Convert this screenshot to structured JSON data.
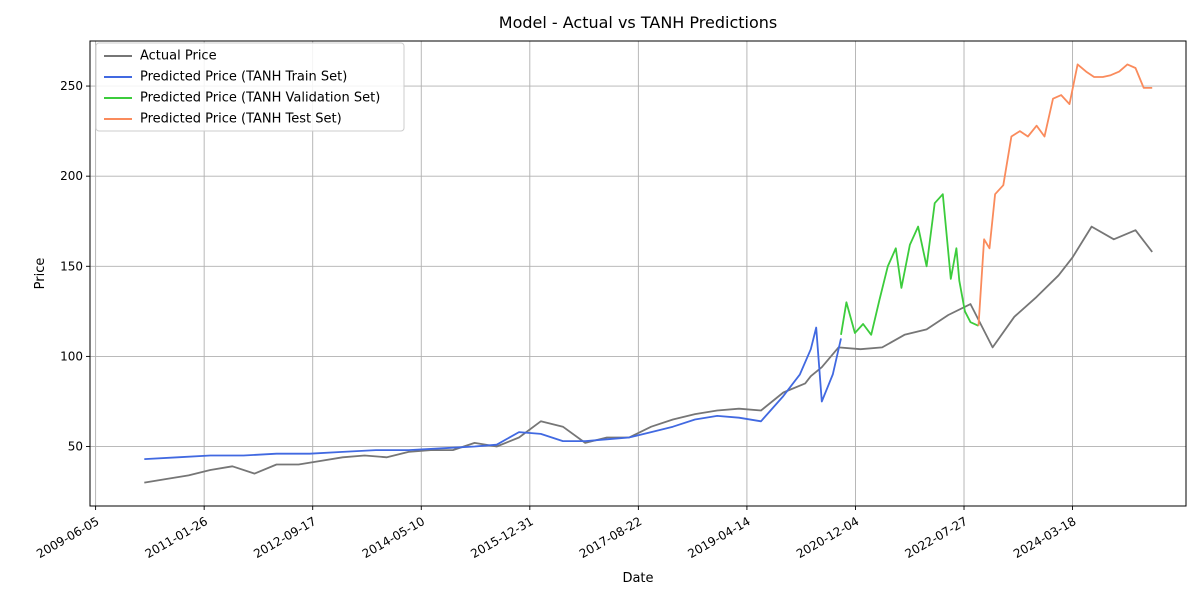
{
  "chart_data": {
    "type": "line",
    "title": "Model - Actual vs TANH Predictions",
    "xlabel": "Date",
    "ylabel": "Price",
    "xlim": [
      "2009-05-05",
      "2025-12-05"
    ],
    "ylim": [
      17,
      275
    ],
    "x_ticks": [
      "2009-06-05",
      "2011-01-26",
      "2012-09-17",
      "2014-05-10",
      "2015-12-31",
      "2017-08-22",
      "2019-04-14",
      "2020-12-04",
      "2022-07-27",
      "2024-03-18"
    ],
    "y_ticks": [
      50,
      100,
      150,
      200,
      250
    ],
    "grid": true,
    "legend_position": "top-left",
    "series": [
      {
        "name": "Actual Price",
        "color": "#767676",
        "x": [
          "2010-03-01",
          "2010-07-01",
          "2010-11-01",
          "2011-03-01",
          "2011-07-01",
          "2011-11-01",
          "2012-03-01",
          "2012-07-01",
          "2012-11-01",
          "2013-03-01",
          "2013-07-01",
          "2013-11-01",
          "2014-03-01",
          "2014-07-01",
          "2014-11-01",
          "2015-03-01",
          "2015-07-01",
          "2015-11-01",
          "2016-03-01",
          "2016-07-01",
          "2016-11-01",
          "2017-03-01",
          "2017-07-01",
          "2017-11-01",
          "2018-03-01",
          "2018-07-01",
          "2018-11-01",
          "2019-03-01",
          "2019-07-01",
          "2019-11-01",
          "2020-03-01",
          "2020-04-01",
          "2020-06-01",
          "2020-09-01",
          "2021-01-01",
          "2021-05-01",
          "2021-09-01",
          "2022-01-01",
          "2022-05-01",
          "2022-09-01",
          "2023-01-01",
          "2023-05-01",
          "2023-09-01",
          "2024-01-01",
          "2024-03-18",
          "2024-07-01",
          "2024-11-01",
          "2025-03-01",
          "2025-06-01"
        ],
        "y": [
          30,
          32,
          34,
          37,
          39,
          35,
          40,
          40,
          42,
          44,
          45,
          44,
          47,
          48,
          48,
          52,
          50,
          55,
          64,
          61,
          52,
          55,
          55,
          61,
          65,
          68,
          70,
          71,
          70,
          80,
          85,
          89,
          94,
          105,
          104,
          105,
          112,
          115,
          123,
          129,
          105,
          122,
          133,
          145,
          155,
          172,
          165,
          170,
          158
        ]
      },
      {
        "name": "Predicted Price (TANH Train Set)",
        "color": "#4169e1",
        "x": [
          "2010-03-01",
          "2010-09-01",
          "2011-03-01",
          "2011-09-01",
          "2012-03-01",
          "2012-09-01",
          "2013-03-01",
          "2013-09-01",
          "2014-03-01",
          "2014-09-01",
          "2015-03-01",
          "2015-07-01",
          "2015-11-01",
          "2016-03-01",
          "2016-07-01",
          "2016-11-01",
          "2017-03-01",
          "2017-07-01",
          "2017-11-01",
          "2018-03-01",
          "2018-07-01",
          "2018-11-01",
          "2019-03-01",
          "2019-07-01",
          "2019-11-01",
          "2020-02-01",
          "2020-04-01",
          "2020-05-01",
          "2020-06-01",
          "2020-08-01",
          "2020-09-15"
        ],
        "y": [
          43,
          44,
          45,
          45,
          46,
          46,
          47,
          48,
          48,
          49,
          50,
          51,
          58,
          57,
          53,
          53,
          54,
          55,
          58,
          61,
          65,
          67,
          66,
          64,
          78,
          90,
          104,
          116,
          75,
          90,
          110
        ]
      },
      {
        "name": "Predicted Price (TANH Validation Set)",
        "color": "#3ccc3c",
        "x": [
          "2020-09-15",
          "2020-10-15",
          "2020-12-01",
          "2021-01-15",
          "2021-03-01",
          "2021-04-15",
          "2021-06-01",
          "2021-07-15",
          "2021-08-15",
          "2021-10-01",
          "2021-11-15",
          "2022-01-01",
          "2022-02-15",
          "2022-04-01",
          "2022-05-15",
          "2022-06-15",
          "2022-07-01",
          "2022-08-01",
          "2022-09-01",
          "2022-10-15"
        ],
        "y": [
          112,
          130,
          113,
          118,
          112,
          131,
          150,
          160,
          138,
          162,
          172,
          150,
          185,
          190,
          143,
          160,
          142,
          125,
          119,
          117
        ]
      },
      {
        "name": "Predicted Price (TANH Test Set)",
        "color": "#fa8b5c",
        "x": [
          "2022-10-15",
          "2022-11-15",
          "2022-12-15",
          "2023-01-15",
          "2023-03-01",
          "2023-04-15",
          "2023-06-01",
          "2023-07-15",
          "2023-09-01",
          "2023-10-15",
          "2023-12-01",
          "2024-01-15",
          "2024-03-01",
          "2024-04-15",
          "2024-06-01",
          "2024-07-15",
          "2024-09-01",
          "2024-10-15",
          "2024-12-01",
          "2025-01-15",
          "2025-03-01",
          "2025-04-15",
          "2025-06-01"
        ],
        "y": [
          117,
          165,
          160,
          190,
          195,
          222,
          225,
          222,
          228,
          222,
          243,
          245,
          240,
          262,
          258,
          255,
          255,
          256,
          258,
          262,
          260,
          249,
          249
        ]
      }
    ]
  }
}
